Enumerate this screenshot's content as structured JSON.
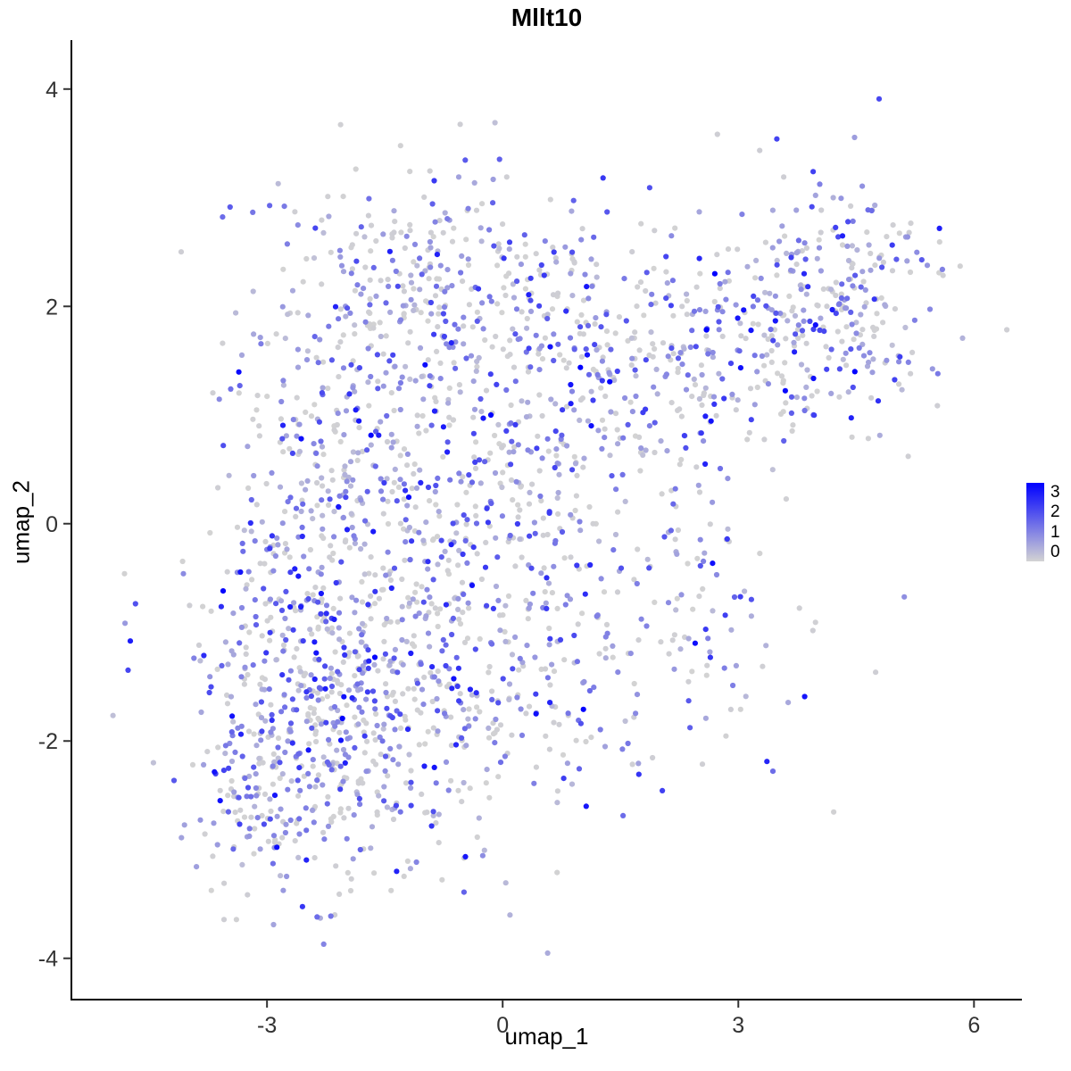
{
  "chart_data": {
    "type": "scatter",
    "title": "Mllt10",
    "xlabel": "umap_1",
    "ylabel": "umap_2",
    "x_ticks": [
      -3,
      0,
      3,
      6
    ],
    "y_ticks": [
      -4,
      -2,
      0,
      2,
      4
    ],
    "x_domain": [
      -5.49,
      6.61
    ],
    "y_domain": [
      -4.38,
      4.45
    ],
    "grid": false,
    "legend": {
      "position": "right",
      "labels": [
        "3",
        "2",
        "1",
        "0"
      ],
      "value_range": [
        0,
        3
      ],
      "low_color": "#D3D3D3",
      "high_color": "#0000FF"
    },
    "point_radius": 3.1,
    "seed": 42,
    "value_distribution": [
      {
        "p": 0.42,
        "min": 0.0,
        "max": 0.08
      },
      {
        "p": 0.34,
        "min": 0.25,
        "max": 1.2
      },
      {
        "p": 0.19,
        "min": 1.2,
        "max": 2.2
      },
      {
        "p": 0.045,
        "min": 2.2,
        "max": 2.8
      },
      {
        "p": 0.005,
        "min": 2.8,
        "max": 3.0
      }
    ],
    "clusters": [
      {
        "cx": -2.6,
        "cy": -2.15,
        "sx": 0.72,
        "sy": 0.68,
        "n": 400
      },
      {
        "cx": -2.3,
        "cy": -0.5,
        "sx": 0.8,
        "sy": 0.85,
        "n": 280
      },
      {
        "cx": -0.95,
        "cy": -1.4,
        "sx": 0.85,
        "sy": 0.8,
        "n": 260
      },
      {
        "cx": -1.7,
        "cy": 0.9,
        "sx": 0.85,
        "sy": 0.75,
        "n": 260
      },
      {
        "cx": -0.9,
        "cy": 2.25,
        "sx": 1.05,
        "sy": 0.5,
        "n": 250
      },
      {
        "cx": 0.15,
        "cy": 0.35,
        "sx": 0.85,
        "sy": 0.95,
        "n": 240
      },
      {
        "cx": 0.7,
        "cy": -1.6,
        "sx": 0.7,
        "sy": 0.75,
        "n": 110
      },
      {
        "cx": 1.0,
        "cy": 1.6,
        "sx": 0.75,
        "sy": 0.65,
        "n": 140
      },
      {
        "cx": 1.9,
        "cy": 0.5,
        "sx": 0.55,
        "sy": 0.6,
        "n": 45
      },
      {
        "cx": 2.4,
        "cy": 1.7,
        "sx": 0.55,
        "sy": 0.5,
        "n": 95
      },
      {
        "cx": 3.3,
        "cy": 1.5,
        "sx": 0.5,
        "sy": 0.45,
        "n": 80
      },
      {
        "cx": 4.35,
        "cy": 2.05,
        "sx": 0.62,
        "sy": 0.55,
        "n": 250
      },
      {
        "cx": 2.7,
        "cy": -0.8,
        "sx": 0.7,
        "sy": 0.6,
        "n": 75
      },
      {
        "cx": -4.7,
        "cy": -1.2,
        "sx": 0.07,
        "sy": 0.13,
        "n": 2
      }
    ],
    "highlight_points": [
      {
        "x": -4.74,
        "y": -1.08,
        "value": 2.6
      },
      {
        "x": 2.7,
        "y": 2.3,
        "value": 3.0
      },
      {
        "x": -0.15,
        "y": 1.0,
        "value": 3.0
      },
      {
        "x": 2.45,
        "y": -1.1,
        "value": 2.8
      },
      {
        "x": -2.9,
        "y": -2.5,
        "value": 2.7
      },
      {
        "x": -1.35,
        "y": -3.2,
        "value": 2.5
      }
    ]
  }
}
